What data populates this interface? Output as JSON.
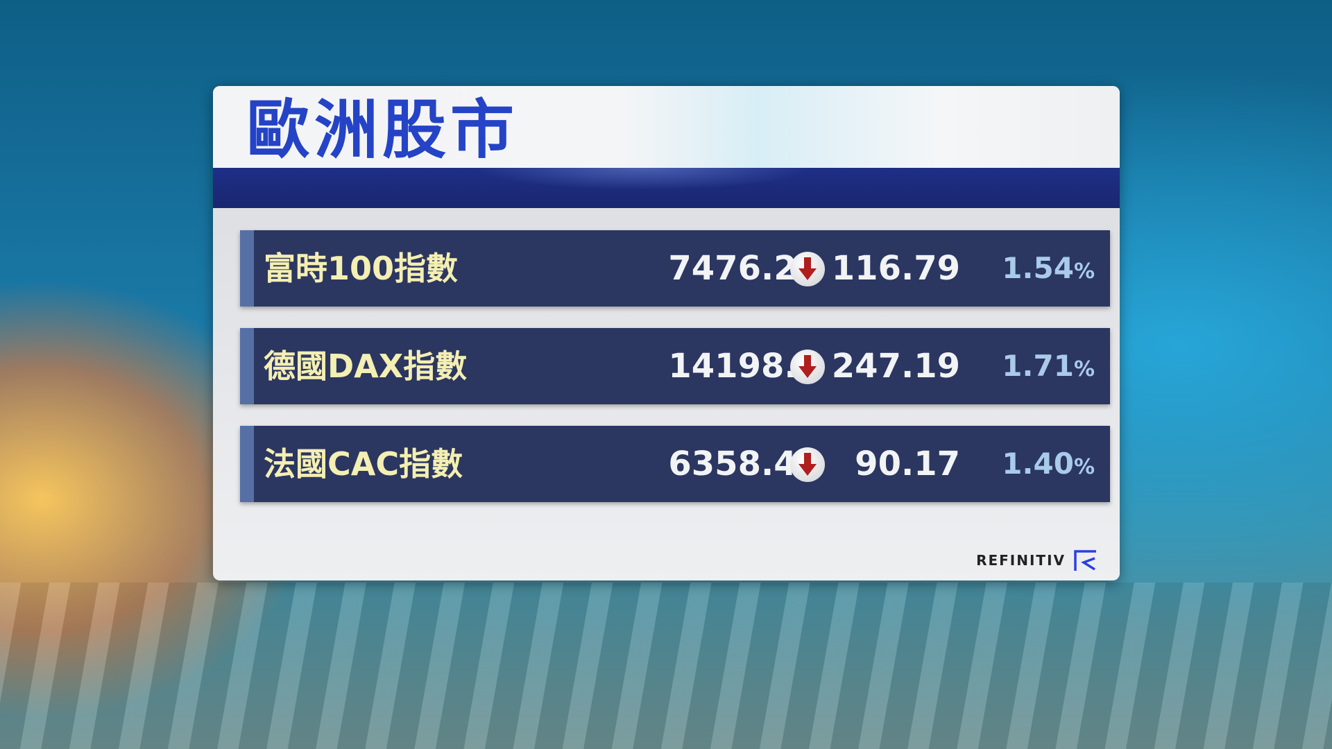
{
  "title": "歐洲股市",
  "colors": {
    "title": "#2443c6",
    "row_bg": "#2b3661",
    "name": "#f4efb2",
    "pct": "#a9cbe9",
    "down_arrow": "#b01e1e"
  },
  "rows": [
    {
      "name": "富時100指數",
      "value": "7476.21",
      "direction": "down",
      "change": "116.79",
      "pct": "1.54",
      "pct_sign": "%"
    },
    {
      "name": "德國DAX指數",
      "value": "14198.8",
      "direction": "down",
      "change": "247.19",
      "pct": "1.71",
      "pct_sign": "%"
    },
    {
      "name": "法國CAC指數",
      "value": "6358.46",
      "direction": "down",
      "change": "90.17",
      "pct": "1.40",
      "pct_sign": "%"
    }
  ],
  "logo": {
    "text": "REFINITIV"
  }
}
